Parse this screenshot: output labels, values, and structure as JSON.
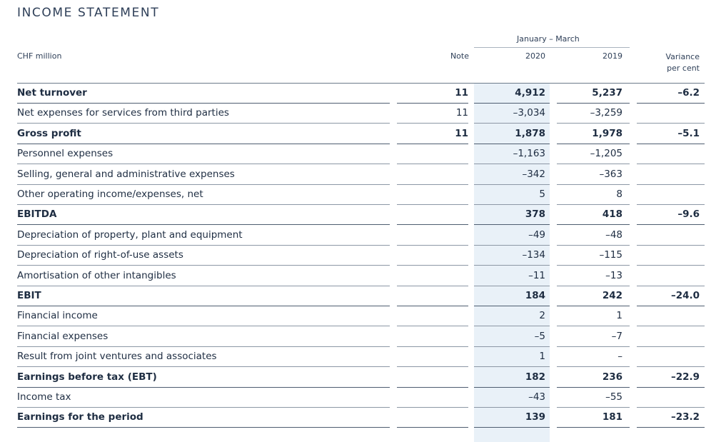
{
  "title": "INCOME STATEMENT",
  "header": {
    "period": "January – March",
    "currency": "CHF million",
    "note": "Note",
    "year_current": "2020",
    "year_prior": "2019",
    "variance_line1": "Variance",
    "variance_line2": "per cent"
  },
  "rows": [
    {
      "label": "Net turnover",
      "note": "11",
      "v2020": "4,912",
      "v2019": "5,237",
      "variance": "–6.2",
      "bold": true
    },
    {
      "label": "Net expenses for services from third parties",
      "note": "11",
      "v2020": "–3,034",
      "v2019": "–3,259",
      "variance": "",
      "bold": false
    },
    {
      "label": "Gross profit",
      "note": "11",
      "v2020": "1,878",
      "v2019": "1,978",
      "variance": "–5.1",
      "bold": true
    },
    {
      "label": "Personnel expenses",
      "note": "",
      "v2020": "–1,163",
      "v2019": "–1,205",
      "variance": "",
      "bold": false
    },
    {
      "label": "Selling, general and administrative expenses",
      "note": "",
      "v2020": "–342",
      "v2019": "–363",
      "variance": "",
      "bold": false
    },
    {
      "label": "Other operating income/expenses, net",
      "note": "",
      "v2020": "5",
      "v2019": "8",
      "variance": "",
      "bold": false
    },
    {
      "label": "EBITDA",
      "note": "",
      "v2020": "378",
      "v2019": "418",
      "variance": "–9.6",
      "bold": true
    },
    {
      "label": "Depreciation of property, plant and equipment",
      "note": "",
      "v2020": "–49",
      "v2019": "–48",
      "variance": "",
      "bold": false
    },
    {
      "label": "Depreciation of right-of-use assets",
      "note": "",
      "v2020": "–134",
      "v2019": "–115",
      "variance": "",
      "bold": false
    },
    {
      "label": "Amortisation of other intangibles",
      "note": "",
      "v2020": "–11",
      "v2019": "–13",
      "variance": "",
      "bold": false
    },
    {
      "label": "EBIT",
      "note": "",
      "v2020": "184",
      "v2019": "242",
      "variance": "–24.0",
      "bold": true
    },
    {
      "label": "Financial income",
      "note": "",
      "v2020": "2",
      "v2019": "1",
      "variance": "",
      "bold": false
    },
    {
      "label": "Financial expenses",
      "note": "",
      "v2020": "–5",
      "v2019": "–7",
      "variance": "",
      "bold": false
    },
    {
      "label": "Result from joint ventures and associates",
      "note": "",
      "v2020": "1",
      "v2019": "–",
      "variance": "",
      "bold": false
    },
    {
      "label": "Earnings before tax (EBT)",
      "note": "",
      "v2020": "182",
      "v2019": "236",
      "variance": "–22.9",
      "bold": true
    },
    {
      "label": "Income tax",
      "note": "",
      "v2020": "–43",
      "v2019": "–55",
      "variance": "",
      "bold": false
    },
    {
      "label": "Earnings for the period",
      "note": "",
      "v2020": "139",
      "v2019": "181",
      "variance": "–23.2",
      "bold": true
    }
  ]
}
